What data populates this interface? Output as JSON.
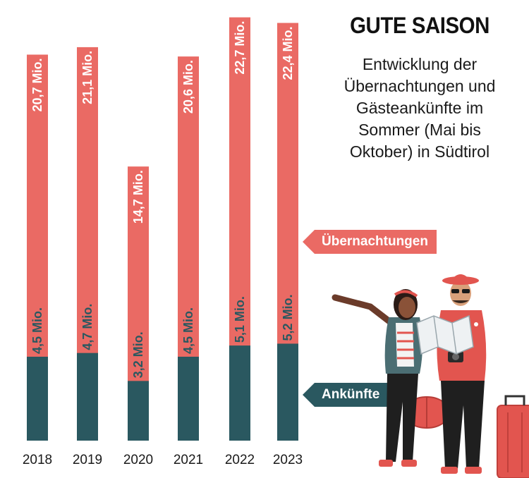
{
  "title": "GUTE SAISON",
  "subtitle_lines": [
    "Entwicklung der",
    "Übernachtungen und",
    "Gästeankünfte im",
    "Sommer (Mai bis",
    "Oktober) in Südtirol"
  ],
  "legend": {
    "overnight": "Übernachtungen",
    "arrivals": "Ankünfte"
  },
  "colors": {
    "overnight": "#ea6a64",
    "arrivals": "#2a5860"
  },
  "chart_data": {
    "type": "bar",
    "categories": [
      "2018",
      "2019",
      "2020",
      "2021",
      "2022",
      "2023"
    ],
    "series": [
      {
        "name": "Übernachtungen",
        "values": [
          20.7,
          21.1,
          14.7,
          20.6,
          22.7,
          22.4
        ],
        "labels": [
          "20,7 Mio.",
          "21,1 Mio.",
          "14,7 Mio.",
          "20,6 Mio.",
          "22,7 Mio.",
          "22,4 Mio."
        ]
      },
      {
        "name": "Ankünfte",
        "values": [
          4.5,
          4.7,
          3.2,
          4.5,
          5.1,
          5.2
        ],
        "labels": [
          "4,5 Mio.",
          "4,7 Mio.",
          "3,2 Mio.",
          "4,5 Mio.",
          "5,1 Mio.",
          "5,2 Mio."
        ]
      }
    ]
  }
}
